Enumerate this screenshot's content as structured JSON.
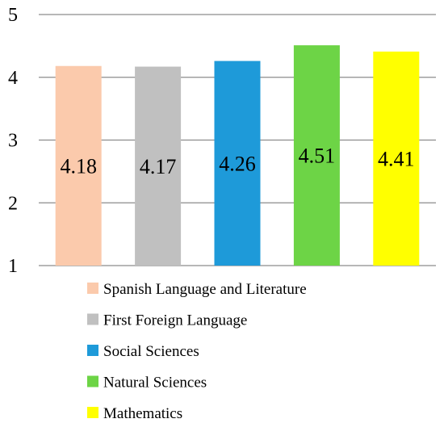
{
  "chart_data": {
    "type": "bar",
    "categories": [
      "Spanish Language and Literature",
      "First Foreign Language",
      "Social Sciences",
      "Natural Sciences",
      "Mathematics"
    ],
    "values": [
      4.18,
      4.17,
      4.26,
      4.51,
      4.41
    ],
    "value_labels": [
      "4.18",
      "4.17",
      "4.26",
      "4.51",
      "4.41"
    ],
    "colors": [
      "#FBCAAC",
      "#C0C0C0",
      "#1E9AD9",
      "#6DD446",
      "#FFFF00"
    ],
    "ylim": [
      1,
      5
    ],
    "yticks": [
      "1",
      "2",
      "3",
      "4",
      "5"
    ],
    "grid": true,
    "legend_position": "bottom",
    "title": "",
    "xlabel": "",
    "ylabel": ""
  }
}
